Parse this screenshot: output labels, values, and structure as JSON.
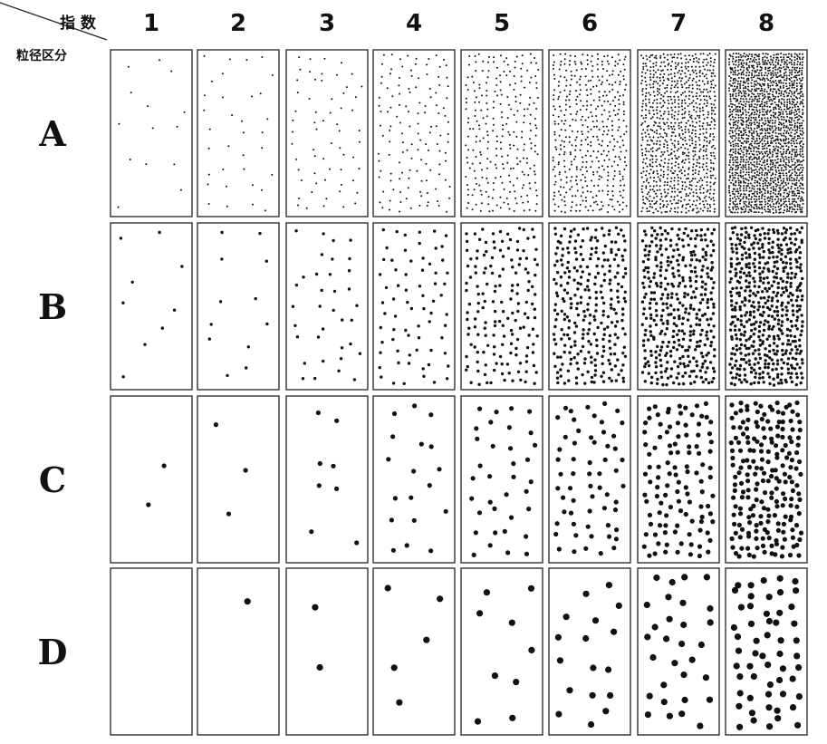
{
  "header": {
    "index_label": "指 数",
    "size_class_label": "粒径区分"
  },
  "columns": [
    "1",
    "2",
    "3",
    "4",
    "5",
    "6",
    "7",
    "8"
  ],
  "rows": [
    {
      "label": "A",
      "dot_radius": 1.0,
      "counts": [
        14,
        34,
        62,
        130,
        260,
        440,
        900,
        1700
      ]
    },
    {
      "label": "B",
      "dot_radius": 1.7,
      "counts": [
        9,
        12,
        35,
        70,
        160,
        280,
        380,
        520
      ]
    },
    {
      "label": "C",
      "dot_radius": 2.6,
      "counts": [
        2,
        3,
        8,
        18,
        35,
        60,
        110,
        200
      ]
    },
    {
      "label": "D",
      "dot_radius": 3.6,
      "counts": [
        0,
        1,
        2,
        5,
        9,
        17,
        30,
        55
      ]
    }
  ]
}
